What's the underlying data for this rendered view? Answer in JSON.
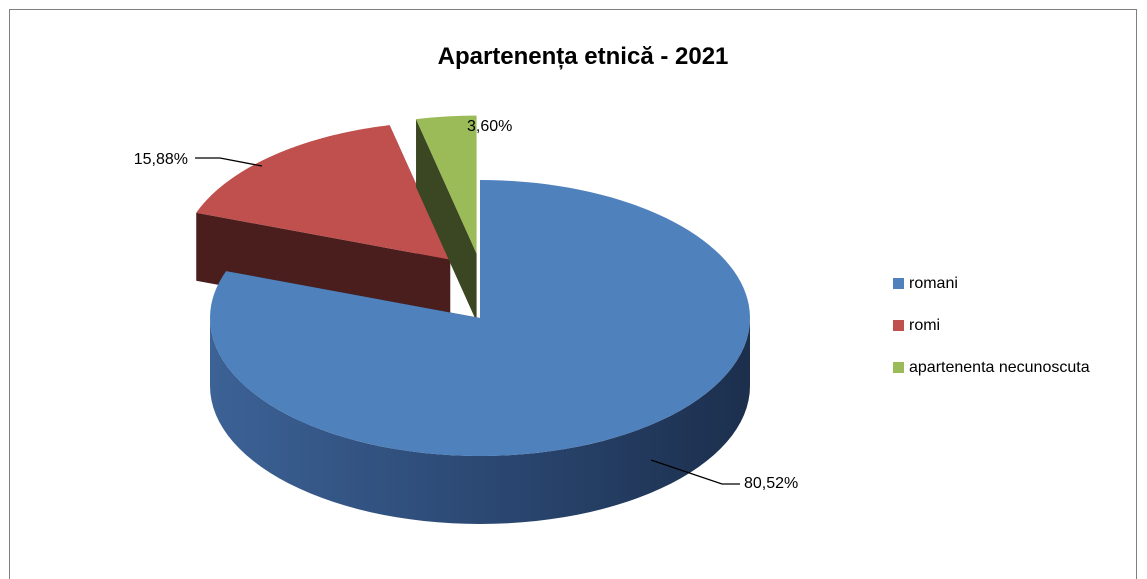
{
  "chart_data": {
    "type": "pie",
    "title": "Apartenența etnică - 2021",
    "categories": [
      "romani",
      "romi",
      "apartenenta necunoscuta"
    ],
    "values": [
      80.52,
      15.88,
      3.6
    ],
    "data_labels": [
      "80,52%",
      "15,88%",
      "3,60%"
    ],
    "colors": [
      "#4f81bd",
      "#c0504d",
      "#9bbb59"
    ],
    "style": "3d-exploded",
    "legend_position": "right"
  }
}
